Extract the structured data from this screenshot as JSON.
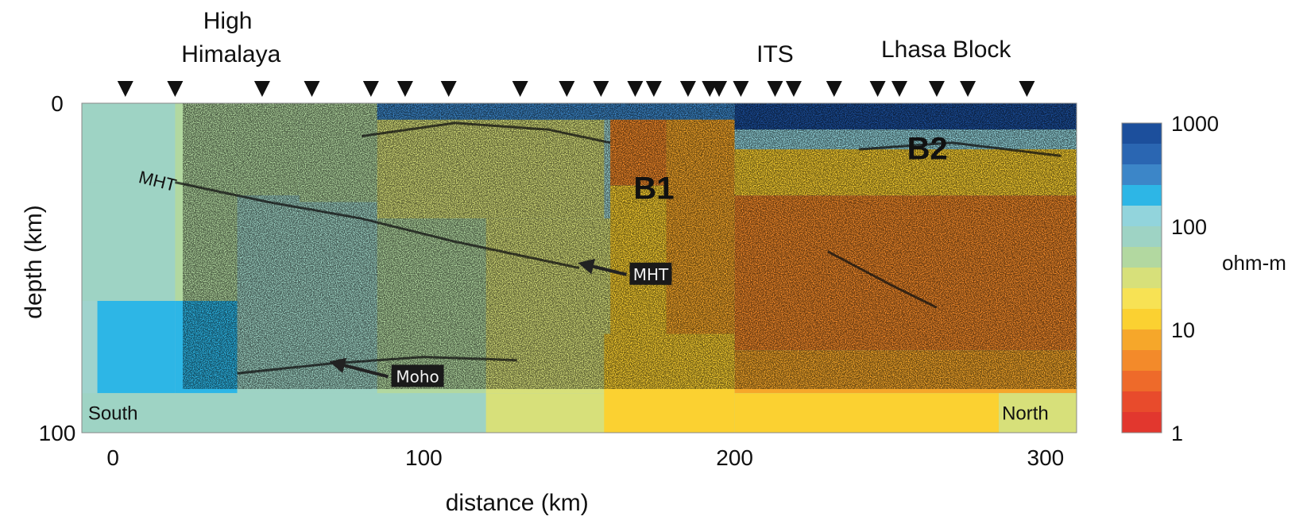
{
  "chart_data": {
    "type": "heatmap",
    "xlabel": "distance (km)",
    "ylabel": "depth (km)",
    "xlim": [
      -10,
      310
    ],
    "ylim": [
      0,
      100
    ],
    "y_inverted": true,
    "x_ticks": [
      0,
      100,
      200,
      300
    ],
    "y_ticks": [
      0,
      100
    ],
    "x_tick_labels": [
      "0",
      "100",
      "200",
      "300"
    ],
    "y_tick_labels": [
      "0",
      "100"
    ],
    "regions": [
      {
        "label": "High\nHimalaya",
        "x": 38
      },
      {
        "label": "ITS",
        "x": 213
      },
      {
        "label": "Lhasa Block",
        "x": 268
      }
    ],
    "stations_km": [
      4,
      20,
      48,
      64,
      83,
      94,
      108,
      131,
      146,
      157,
      168,
      174,
      185,
      192,
      195,
      202,
      213,
      219,
      232,
      246,
      253,
      265,
      275,
      294
    ],
    "colorbar": {
      "label": "ohm-m",
      "scale": "log",
      "range": [
        1,
        1000
      ],
      "tick_values": [
        1000,
        100,
        10,
        1
      ],
      "tick_labels": [
        "1000",
        "100",
        "10",
        "1"
      ],
      "colors_top_to_bottom": [
        "#1c4f9c",
        "#2a66b2",
        "#3c86c8",
        "#2db6e6",
        "#92d4dc",
        "#9ed3c4",
        "#b2d8a0",
        "#d7e07a",
        "#f7e254",
        "#fbd131",
        "#f6a72a",
        "#f38a2a",
        "#ee6a2a",
        "#e84b2c",
        "#e2372e"
      ]
    },
    "annotations": [
      {
        "text": "MHT",
        "x": 8,
        "depth": 24,
        "rotated": true
      },
      {
        "text": "B1",
        "x": 174,
        "depth": 29,
        "style": "bold"
      },
      {
        "text": "B2",
        "x": 262,
        "depth": 17,
        "style": "bold"
      },
      {
        "text": "MHT",
        "x": 173,
        "depth": 52,
        "boxed": true,
        "arrow_to": {
          "x": 150,
          "depth": 49
        }
      },
      {
        "text": "Moho",
        "x": 98,
        "depth": 83,
        "boxed": true,
        "arrow_to": {
          "x": 70,
          "depth": 79
        }
      },
      {
        "text": "South",
        "x": -8,
        "depth": 96
      },
      {
        "text": "North",
        "x": 286,
        "depth": 96
      }
    ],
    "resistivity_cells": [
      {
        "x0": -10,
        "x1": 20,
        "d0": 0,
        "d1": 24,
        "ohm_m": 80
      },
      {
        "x0": -10,
        "x1": 20,
        "d0": 24,
        "d1": 60,
        "ohm_m": 100
      },
      {
        "x0": -5,
        "x1": 20,
        "d0": 60,
        "d1": 88,
        "ohm_m": 200
      },
      {
        "x0": -10,
        "x1": 20,
        "d0": 88,
        "d1": 100,
        "ohm_m": 100
      },
      {
        "x0": 20,
        "x1": 40,
        "d0": 0,
        "d1": 60,
        "ohm_m": 60
      },
      {
        "x0": 20,
        "x1": 40,
        "d0": 60,
        "d1": 88,
        "ohm_m": 200
      },
      {
        "x0": 20,
        "x1": 40,
        "d0": 88,
        "d1": 100,
        "ohm_m": 100
      },
      {
        "x0": 40,
        "x1": 60,
        "d0": 0,
        "d1": 28,
        "ohm_m": 60
      },
      {
        "x0": 40,
        "x1": 60,
        "d0": 28,
        "d1": 88,
        "ohm_m": 90
      },
      {
        "x0": 40,
        "x1": 95,
        "d0": 88,
        "d1": 100,
        "ohm_m": 100
      },
      {
        "x0": 60,
        "x1": 85,
        "d0": 0,
        "d1": 30,
        "ohm_m": 50
      },
      {
        "x0": 60,
        "x1": 85,
        "d0": 30,
        "d1": 88,
        "ohm_m": 90
      },
      {
        "x0": 85,
        "x1": 140,
        "d0": 5,
        "d1": 35,
        "ohm_m": 25
      },
      {
        "x0": 85,
        "x1": 120,
        "d0": 35,
        "d1": 88,
        "ohm_m": 60
      },
      {
        "x0": 95,
        "x1": 120,
        "d0": 88,
        "d1": 100,
        "ohm_m": 70
      },
      {
        "x0": 120,
        "x1": 160,
        "d0": 35,
        "d1": 88,
        "ohm_m": 35
      },
      {
        "x0": 120,
        "x1": 160,
        "d0": 88,
        "d1": 100,
        "ohm_m": 40
      },
      {
        "x0": 140,
        "x1": 158,
        "d0": 5,
        "d1": 35,
        "ohm_m": 40
      },
      {
        "x0": 85,
        "x1": 158,
        "d0": 0,
        "d1": 5,
        "ohm_m": 300
      },
      {
        "x0": 158,
        "x1": 200,
        "d0": 0,
        "d1": 5,
        "ohm_m": 400
      },
      {
        "x0": 160,
        "x1": 178,
        "d0": 5,
        "d1": 25,
        "ohm_m": 4
      },
      {
        "x0": 160,
        "x1": 180,
        "d0": 25,
        "d1": 70,
        "ohm_m": 12
      },
      {
        "x0": 158,
        "x1": 200,
        "d0": 70,
        "d1": 100,
        "ohm_m": 15
      },
      {
        "x0": 178,
        "x1": 200,
        "d0": 5,
        "d1": 70,
        "ohm_m": 8
      },
      {
        "x0": 200,
        "x1": 310,
        "d0": 0,
        "d1": 8,
        "ohm_m": 800
      },
      {
        "x0": 200,
        "x1": 310,
        "d0": 8,
        "d1": 14,
        "ohm_m": 150
      },
      {
        "x0": 200,
        "x1": 310,
        "d0": 14,
        "d1": 28,
        "ohm_m": 10
      },
      {
        "x0": 200,
        "x1": 310,
        "d0": 28,
        "d1": 75,
        "ohm_m": 4
      },
      {
        "x0": 200,
        "x1": 310,
        "d0": 75,
        "d1": 88,
        "ohm_m": 8
      },
      {
        "x0": 200,
        "x1": 285,
        "d0": 88,
        "d1": 100,
        "ohm_m": 15
      },
      {
        "x0": 285,
        "x1": 310,
        "d0": 88,
        "d1": 100,
        "ohm_m": 40
      }
    ],
    "reflectors": [
      {
        "name": "MHT",
        "points": [
          [
            20,
            24
          ],
          [
            50,
            30
          ],
          [
            80,
            35
          ],
          [
            110,
            42
          ],
          [
            150,
            50
          ]
        ]
      },
      {
        "name": "Moho",
        "points": [
          [
            40,
            82
          ],
          [
            70,
            79
          ],
          [
            100,
            77
          ],
          [
            130,
            78
          ]
        ]
      },
      {
        "name": "upper-crust",
        "points": [
          [
            80,
            10
          ],
          [
            110,
            6
          ],
          [
            140,
            8
          ],
          [
            160,
            12
          ]
        ]
      },
      {
        "name": "north-dipping",
        "points": [
          [
            230,
            45
          ],
          [
            250,
            55
          ],
          [
            265,
            62
          ]
        ]
      },
      {
        "name": "shallow-north",
        "points": [
          [
            240,
            14
          ],
          [
            270,
            12
          ],
          [
            305,
            16
          ]
        ]
      }
    ]
  }
}
